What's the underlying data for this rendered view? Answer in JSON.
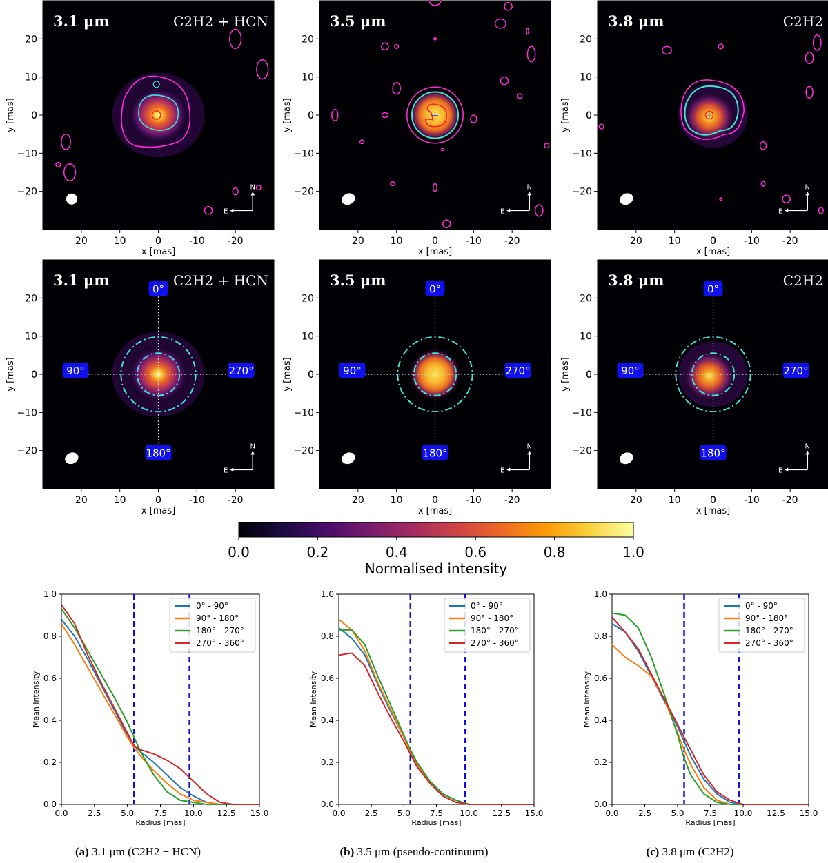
{
  "chart_data": [
    {
      "type": "heatmap",
      "panel_label": "3.1 μm",
      "species": "C2H2 + HCN",
      "xlabel": "x [mas]",
      "ylabel": "y [mas]",
      "xlim": [
        30,
        -30
      ],
      "ylim": [
        -30,
        30
      ],
      "xticks": [
        20,
        10,
        0,
        -10,
        -20
      ],
      "yticks": [
        20,
        10,
        0,
        -10,
        -20
      ],
      "compass": {
        "n": "N",
        "e": "E"
      },
      "contours": [
        "magenta",
        "cyan",
        "red"
      ]
    },
    {
      "type": "heatmap",
      "panel_label": "3.5 μm",
      "species": "",
      "xlabel": "x [mas]",
      "ylabel": "y [mas]",
      "xlim": [
        30,
        -30
      ],
      "ylim": [
        -30,
        30
      ],
      "xticks": [
        20,
        10,
        0,
        -10,
        -20
      ],
      "yticks": [
        20,
        10,
        0,
        -10,
        -20
      ],
      "compass": {
        "n": "N",
        "e": "E"
      },
      "contours": [
        "magenta",
        "cyan",
        "red"
      ]
    },
    {
      "type": "heatmap",
      "panel_label": "3.8 μm",
      "species": "C2H2",
      "xlabel": "x [mas]",
      "ylabel": "y [mas]",
      "xlim": [
        30,
        -30
      ],
      "ylim": [
        -30,
        30
      ],
      "xticks": [
        20,
        10,
        0,
        -10,
        -20
      ],
      "yticks": [
        20,
        10,
        0,
        -10,
        -20
      ],
      "compass": {
        "n": "N",
        "e": "E"
      },
      "contours": [
        "magenta",
        "cyan",
        "red"
      ]
    },
    {
      "type": "heatmap",
      "panel_label": "3.1 μm",
      "species": "C2H2 + HCN",
      "xlabel": "x [mas]",
      "ylabel": "y [mas]",
      "xlim": [
        30,
        -30
      ],
      "ylim": [
        -30,
        30
      ],
      "xticks": [
        20,
        10,
        0,
        -10,
        -20
      ],
      "yticks": [
        20,
        10,
        0,
        -10,
        -20
      ],
      "angle_labels": [
        "0°",
        "90°",
        "180°",
        "270°"
      ],
      "rings_mas": [
        5.5,
        9.7
      ],
      "compass": {
        "n": "N",
        "e": "E"
      }
    },
    {
      "type": "heatmap",
      "panel_label": "3.5 μm",
      "species": "",
      "xlabel": "x [mas]",
      "ylabel": "y [mas]",
      "xlim": [
        30,
        -30
      ],
      "ylim": [
        -30,
        30
      ],
      "xticks": [
        20,
        10,
        0,
        -10,
        -20
      ],
      "yticks": [
        20,
        10,
        0,
        -10,
        -20
      ],
      "angle_labels": [
        "0°",
        "90°",
        "180°",
        "270°"
      ],
      "rings_mas": [
        5.5,
        9.7
      ],
      "compass": {
        "n": "N",
        "e": "E"
      }
    },
    {
      "type": "heatmap",
      "panel_label": "3.8 μm",
      "species": "C2H2",
      "xlabel": "x [mas]",
      "ylabel": "y [mas]",
      "xlim": [
        30,
        -30
      ],
      "ylim": [
        -30,
        30
      ],
      "xticks": [
        20,
        10,
        0,
        -10,
        -20
      ],
      "yticks": [
        20,
        10,
        0,
        -10,
        -20
      ],
      "angle_labels": [
        "0°",
        "90°",
        "180°",
        "270°"
      ],
      "rings_mas": [
        5.5,
        9.7
      ],
      "compass": {
        "n": "N",
        "e": "E"
      }
    },
    {
      "type": "colorbar",
      "label": "Normalised intensity",
      "range": [
        0.0,
        1.0
      ],
      "ticks": [
        "0.0",
        "0.2",
        "0.4",
        "0.6",
        "0.8",
        "1.0"
      ],
      "colormap": [
        "#000004",
        "#1b0c41",
        "#4a0c6b",
        "#781c6d",
        "#a52c60",
        "#cf4446",
        "#ed6925",
        "#fb9b06",
        "#f7d13d",
        "#fcffa4"
      ]
    },
    {
      "type": "line",
      "caption_tag": "(a)",
      "caption_text": "3.1 μm (C2H2 + HCN)",
      "xlabel": "Radius [mas]",
      "ylabel": "Mean Intensity",
      "xlim": [
        0,
        15
      ],
      "ylim": [
        0,
        1
      ],
      "xticks": [
        "0.0",
        "2.5",
        "5.0",
        "7.5",
        "10.0",
        "12.5",
        "15.0"
      ],
      "yticks": [
        "0.0",
        "0.2",
        "0.4",
        "0.6",
        "0.8",
        "1.0"
      ],
      "vlines": [
        5.5,
        9.7
      ],
      "x": [
        0,
        1,
        2,
        3,
        4,
        5,
        5.5,
        6,
        7,
        8,
        9,
        10,
        11,
        12,
        13,
        14,
        15
      ],
      "series": [
        {
          "name": "0° - 90°",
          "color": "#1f77b4",
          "values": [
            0.88,
            0.8,
            0.69,
            0.57,
            0.45,
            0.33,
            0.28,
            0.25,
            0.2,
            0.14,
            0.08,
            0.04,
            0.01,
            0.0,
            0.0,
            0.0,
            0.0
          ]
        },
        {
          "name": "90° - 180°",
          "color": "#ff7f0e",
          "values": [
            0.86,
            0.76,
            0.65,
            0.54,
            0.43,
            0.32,
            0.27,
            0.23,
            0.16,
            0.1,
            0.05,
            0.02,
            0.01,
            0.0,
            0.0,
            0.0,
            0.0
          ]
        },
        {
          "name": "180° - 270°",
          "color": "#2ca02c",
          "values": [
            0.93,
            0.84,
            0.73,
            0.62,
            0.51,
            0.39,
            0.32,
            0.25,
            0.14,
            0.06,
            0.02,
            0.01,
            0.0,
            0.0,
            0.0,
            0.0,
            0.0
          ]
        },
        {
          "name": "270° - 360°",
          "color": "#d62728",
          "values": [
            0.95,
            0.86,
            0.71,
            0.58,
            0.46,
            0.34,
            0.28,
            0.26,
            0.24,
            0.21,
            0.17,
            0.11,
            0.05,
            0.01,
            0.0,
            0.0,
            0.0
          ]
        }
      ]
    },
    {
      "type": "line",
      "caption_tag": "(b)",
      "caption_text": "3.5 μm (pseudo-continuum)",
      "xlabel": "Radius [mas]",
      "ylabel": "Mean Intensity",
      "xlim": [
        0,
        15
      ],
      "ylim": [
        0,
        1
      ],
      "xticks": [
        "0.0",
        "2.5",
        "5.0",
        "7.5",
        "10.0",
        "12.5",
        "15.0"
      ],
      "yticks": [
        "0.0",
        "0.2",
        "0.4",
        "0.6",
        "0.8",
        "1.0"
      ],
      "vlines": [
        5.5,
        9.7
      ],
      "x": [
        0,
        1,
        2,
        3,
        4,
        5,
        5.5,
        6,
        7,
        8,
        9,
        10,
        11,
        12,
        13,
        14,
        15
      ],
      "series": [
        {
          "name": "0° - 90°",
          "color": "#1f77b4",
          "values": [
            0.84,
            0.79,
            0.71,
            0.57,
            0.44,
            0.32,
            0.26,
            0.2,
            0.11,
            0.05,
            0.02,
            0.0,
            0.0,
            0.0,
            0.0,
            0.0,
            0.0
          ]
        },
        {
          "name": "90° - 180°",
          "color": "#ff7f0e",
          "values": [
            0.88,
            0.83,
            0.73,
            0.58,
            0.45,
            0.32,
            0.25,
            0.19,
            0.1,
            0.04,
            0.01,
            0.0,
            0.0,
            0.0,
            0.0,
            0.0,
            0.0
          ]
        },
        {
          "name": "180° - 270°",
          "color": "#2ca02c",
          "values": [
            0.83,
            0.83,
            0.76,
            0.61,
            0.47,
            0.33,
            0.26,
            0.2,
            0.11,
            0.05,
            0.02,
            0.0,
            0.0,
            0.0,
            0.0,
            0.0,
            0.0
          ]
        },
        {
          "name": "270° - 360°",
          "color": "#d62728",
          "values": [
            0.71,
            0.72,
            0.66,
            0.53,
            0.41,
            0.3,
            0.24,
            0.18,
            0.1,
            0.04,
            0.01,
            0.0,
            0.0,
            0.0,
            0.0,
            0.0,
            0.0
          ]
        }
      ]
    },
    {
      "type": "line",
      "caption_tag": "(c)",
      "caption_text": "3.8 μm (C2H2)",
      "xlabel": "Radius [mas]",
      "ylabel": "Mean Intensity",
      "xlim": [
        0,
        15
      ],
      "ylim": [
        0,
        1
      ],
      "xticks": [
        "0.0",
        "2.5",
        "5.0",
        "7.5",
        "10.0",
        "12.5",
        "15.0"
      ],
      "yticks": [
        "0.0",
        "0.2",
        "0.4",
        "0.6",
        "0.8",
        "1.0"
      ],
      "vlines": [
        5.5,
        9.7
      ],
      "x": [
        0,
        1,
        2,
        3,
        4,
        5,
        5.5,
        6,
        7,
        8,
        9,
        10,
        11,
        12,
        13,
        14,
        15
      ],
      "series": [
        {
          "name": "0° - 90°",
          "color": "#1f77b4",
          "values": [
            0.86,
            0.82,
            0.73,
            0.61,
            0.49,
            0.37,
            0.3,
            0.23,
            0.12,
            0.05,
            0.01,
            0.0,
            0.0,
            0.0,
            0.0,
            0.0,
            0.0
          ]
        },
        {
          "name": "90° - 180°",
          "color": "#ff7f0e",
          "values": [
            0.76,
            0.7,
            0.66,
            0.61,
            0.5,
            0.34,
            0.26,
            0.19,
            0.08,
            0.02,
            0.0,
            0.0,
            0.0,
            0.0,
            0.0,
            0.0,
            0.0
          ]
        },
        {
          "name": "180° - 270°",
          "color": "#2ca02c",
          "values": [
            0.91,
            0.9,
            0.84,
            0.7,
            0.52,
            0.33,
            0.22,
            0.14,
            0.05,
            0.01,
            0.0,
            0.0,
            0.0,
            0.0,
            0.0,
            0.0,
            0.0
          ]
        },
        {
          "name": "270° - 360°",
          "color": "#d62728",
          "values": [
            0.89,
            0.82,
            0.74,
            0.62,
            0.5,
            0.38,
            0.32,
            0.26,
            0.14,
            0.06,
            0.02,
            0.0,
            0.0,
            0.0,
            0.0,
            0.0,
            0.0
          ]
        }
      ]
    }
  ]
}
